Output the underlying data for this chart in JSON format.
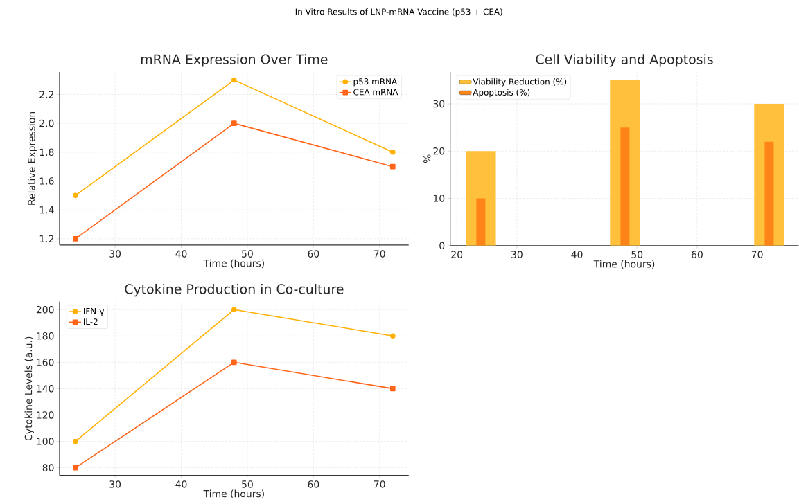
{
  "chart_data": [
    {
      "type": "line",
      "title": "mRNA Expression Over Time",
      "xlabel": "Time (hours)",
      "ylabel": "Relative Expression",
      "annotations": [
        "In Vitro Results of LNP-mRNA Vaccine (p53 + CEA)"
      ],
      "x": [
        24,
        48,
        72
      ],
      "series": [
        {
          "name": "p53 mRNA",
          "color": "#ffb000",
          "values": [
            1.5,
            2.3,
            1.8
          ],
          "marker": "circle"
        },
        {
          "name": "CEA mRNA",
          "color": "#ff6419",
          "values": [
            1.2,
            2.0,
            1.7
          ],
          "marker": "square"
        }
      ],
      "xlim": [
        21.6,
        74.4
      ],
      "ylim": [
        1.157,
        2.356
      ],
      "xticks": [
        30,
        40,
        50,
        60,
        70
      ],
      "yticks": [
        1.2,
        1.4,
        1.6,
        1.8,
        {
          "value": 2.0,
          "label": "2.0"
        },
        2.2
      ],
      "grid": true,
      "legend": "top right",
      "line_style": "solid"
    },
    {
      "type": "bar",
      "title": "Cell Viability and Apoptosis",
      "xlabel": "Time (hours)",
      "ylabel": "%",
      "x": [
        24,
        48,
        72
      ],
      "series": [
        {
          "name": "Viability Reduction (%)",
          "color": "#ffc13b",
          "values": [
            20,
            35,
            30
          ]
        },
        {
          "name": "Apoptosis (%)",
          "color": "#ff8418",
          "values": [
            10,
            25,
            22
          ]
        }
      ],
      "xlim": [
        18.9,
        76.9
      ],
      "ylim": [
        0,
        36.75
      ],
      "xticks": [
        20,
        30,
        40,
        50,
        60,
        70
      ],
      "yticks": [
        0,
        10,
        20,
        30
      ],
      "grid": true,
      "legend": "top left"
    },
    {
      "type": "line",
      "title": "Cytokine Production in Co-culture",
      "xlabel": "Time (hours)",
      "ylabel": "Cytokine Levels (a.u.)",
      "x": [
        24,
        48,
        72
      ],
      "series": [
        {
          "name": "IFN-γ",
          "color": "#ffb000",
          "values": [
            100,
            200,
            180
          ],
          "marker": "circle"
        },
        {
          "name": "IL-2",
          "color": "#ff6419",
          "values": [
            80,
            160,
            140
          ],
          "marker": "square"
        }
      ],
      "xlim": [
        21.6,
        74.4
      ],
      "ylim": [
        74.2,
        206
      ],
      "xticks": [
        30,
        40,
        50,
        60,
        70
      ],
      "yticks": [
        80,
        100,
        120,
        140,
        160,
        180,
        200
      ],
      "grid": true,
      "legend": "top left",
      "line_style": "solid"
    }
  ]
}
